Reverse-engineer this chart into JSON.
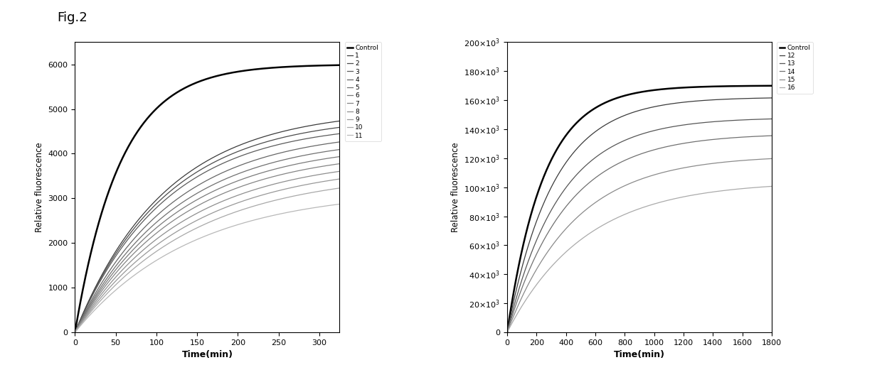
{
  "fig_label": "Fig.2",
  "plot1": {
    "xlabel": "Time(min)",
    "ylabel": "Relative fluorescence",
    "xlim": [
      0,
      325
    ],
    "ylim": [
      0,
      6500
    ],
    "xticks": [
      0,
      50,
      100,
      150,
      200,
      250,
      300
    ],
    "yticks": [
      0,
      1000,
      2000,
      3000,
      4000,
      5000,
      6000
    ],
    "legend_labels": [
      "Control",
      "1",
      "2",
      "3",
      "4",
      "5",
      "6",
      "7",
      "8",
      "9",
      "10",
      "11"
    ],
    "control_k": 0.018,
    "control_final": 6000,
    "series": [
      {
        "final": 5000,
        "k": 0.009
      },
      {
        "final": 4850,
        "k": 0.009
      },
      {
        "final": 4700,
        "k": 0.009
      },
      {
        "final": 4550,
        "k": 0.0085
      },
      {
        "final": 4400,
        "k": 0.0082
      },
      {
        "final": 4250,
        "k": 0.008
      },
      {
        "final": 4100,
        "k": 0.0078
      },
      {
        "final": 3950,
        "k": 0.0075
      },
      {
        "final": 3800,
        "k": 0.0072
      },
      {
        "final": 3600,
        "k": 0.007
      },
      {
        "final": 3200,
        "k": 0.007
      }
    ],
    "series_colors": [
      "#3a3a3a",
      "#4a4a4a",
      "#5a5a5a",
      "#666666",
      "#707070",
      "#7a7a7a",
      "#848484",
      "#8e8e8e",
      "#989898",
      "#a8a8a8",
      "#b8b8b8"
    ],
    "time_max": 325
  },
  "plot2": {
    "xlabel": "Time(min)",
    "ylabel": "Relative fluorescence",
    "xlim": [
      0,
      1800
    ],
    "ylim": [
      0,
      200000
    ],
    "xticks": [
      0,
      200,
      400,
      600,
      800,
      1000,
      1200,
      1400,
      1600,
      1800
    ],
    "yticks": [
      0,
      20000,
      40000,
      60000,
      80000,
      100000,
      120000,
      140000,
      160000,
      180000,
      200000
    ],
    "legend_labels": [
      "Control",
      "12",
      "13",
      "14",
      "15",
      "16"
    ],
    "control_final": 170000,
    "control_k": 0.004,
    "series": [
      {
        "final": 162000,
        "k": 0.0032
      },
      {
        "final": 148000,
        "k": 0.0028
      },
      {
        "final": 137000,
        "k": 0.0025
      },
      {
        "final": 122000,
        "k": 0.0022
      },
      {
        "final": 104000,
        "k": 0.0019
      }
    ],
    "series_colors": [
      "#3a3a3a",
      "#555555",
      "#707070",
      "#8a8a8a",
      "#aaaaaa"
    ]
  }
}
